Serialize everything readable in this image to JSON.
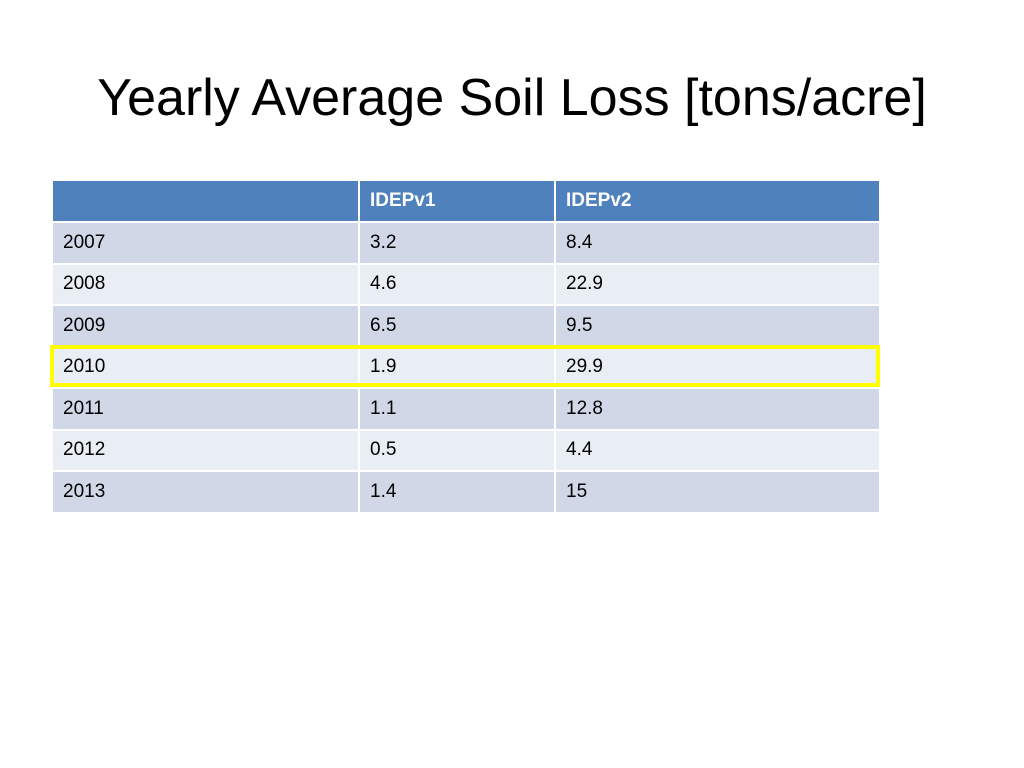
{
  "slide": {
    "title": "Yearly Average Soil Loss [tons/acre]"
  },
  "table": {
    "headers": [
      "",
      "IDEPv1",
      "IDEPv2"
    ],
    "rows": [
      [
        "2007",
        "3.2",
        "8.4"
      ],
      [
        "2008",
        "4.6",
        "22.9"
      ],
      [
        "2009",
        "6.5",
        "9.5"
      ],
      [
        "2010",
        "1.9",
        "29.9"
      ],
      [
        "2011",
        "1.1",
        "12.8"
      ],
      [
        "2012",
        "0.5",
        "4.4"
      ],
      [
        "2013",
        "1.4",
        "15"
      ]
    ],
    "highlighted_row": "2010"
  },
  "colors": {
    "header_bg": "#4f81bd",
    "row_dark": "#d0d8e8",
    "row_light": "#e9edf4",
    "highlight": "#ffff00"
  }
}
